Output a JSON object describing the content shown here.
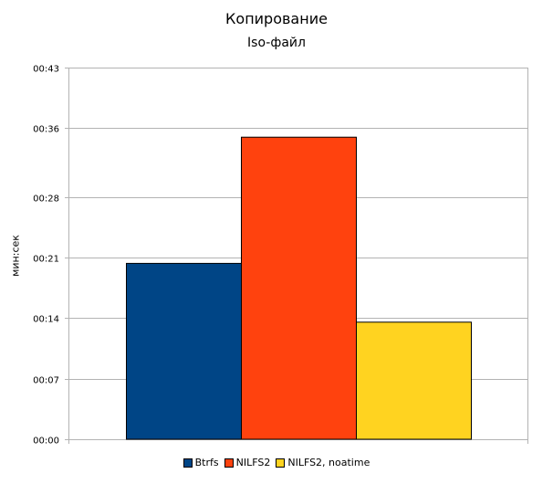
{
  "chart_data": {
    "type": "bar",
    "title": "Копирование",
    "subtitle": "Iso-файл",
    "xlabel": "",
    "ylabel": "мин:сек",
    "yunit": "seconds",
    "ylim": [
      0,
      43
    ],
    "yticks": [
      0,
      7,
      14,
      21,
      28,
      36,
      43
    ],
    "yticklabels": [
      "00:00",
      "00:07",
      "00:14",
      "00:21",
      "00:28",
      "00:36",
      "00:43"
    ],
    "categories": [
      ""
    ],
    "series": [
      {
        "name": "Btrfs",
        "values": [
          20.4
        ],
        "color": "#004586"
      },
      {
        "name": "NILFS2",
        "values": [
          35.0
        ],
        "color": "#ff420e"
      },
      {
        "name": "NILFS2, noatime",
        "values": [
          13.6
        ],
        "color": "#ffd320"
      }
    ],
    "grid": true,
    "legend_position": "bottom"
  }
}
